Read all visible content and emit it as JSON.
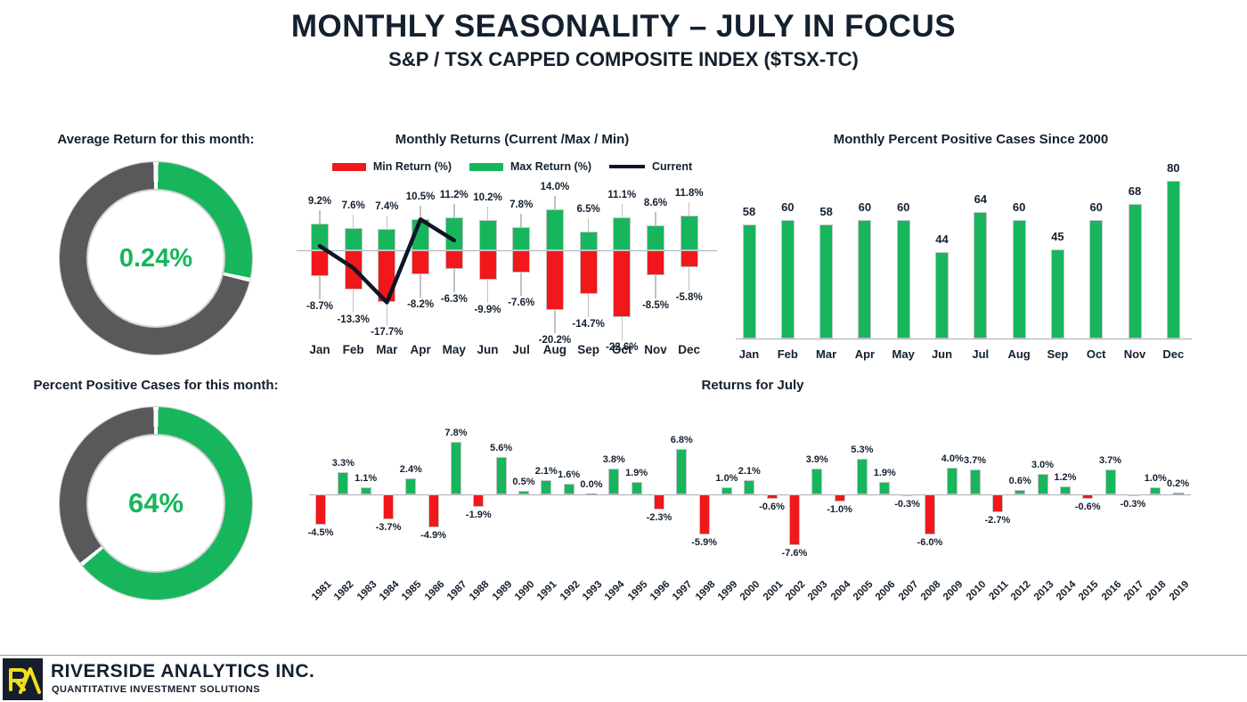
{
  "header": {
    "title": "MONTHLY SEASONALITY – JULY IN FOCUS",
    "subtitle": "S&P / TSX CAPPED COMPOSITE INDEX ($TSX-TC)"
  },
  "colors": {
    "green": "#17B65C",
    "red": "#F2171B",
    "donut_gray": "#58595B",
    "navy": "#14202E",
    "line": "#0D1726",
    "axis": "#AAADB2"
  },
  "chart_data": [
    {
      "id": "avg-return-donut",
      "type": "pie",
      "title": "Average Return for this month:",
      "value_label": "0.24%",
      "slices": [
        {
          "name": "highlight",
          "fraction": 0.285,
          "color": "#17B65C"
        },
        {
          "name": "remainder",
          "fraction": 0.715,
          "color": "#58595B"
        }
      ]
    },
    {
      "id": "monthly-returns",
      "type": "bar",
      "title": "Monthly Returns (Current /Max / Min)",
      "categories": [
        "Jan",
        "Feb",
        "Mar",
        "Apr",
        "May",
        "Jun",
        "Jul",
        "Aug",
        "Sep",
        "Oct",
        "Nov",
        "Dec"
      ],
      "series": [
        {
          "name": "Min Return (%)",
          "color": "#F2171B",
          "values": [
            -8.7,
            -13.3,
            -17.7,
            -8.2,
            -6.3,
            -9.9,
            -7.6,
            -20.2,
            -14.7,
            -22.6,
            -8.5,
            -5.8
          ]
        },
        {
          "name": "Max Return (%)",
          "color": "#17B65C",
          "values": [
            9.2,
            7.6,
            7.4,
            10.5,
            11.2,
            10.2,
            7.8,
            14.0,
            6.5,
            11.1,
            8.6,
            11.8
          ]
        },
        {
          "name": "Current",
          "color": "#0D1726",
          "render": "line",
          "months_covered": [
            "Jan",
            "Feb",
            "Mar",
            "Apr",
            "May"
          ],
          "values_estimated": [
            1.5,
            -6.0,
            -17.7,
            10.5,
            3.4
          ]
        }
      ]
    },
    {
      "id": "percent-positive-monthly",
      "type": "bar",
      "title": "Monthly Percent Positive Cases Since 2000",
      "categories": [
        "Jan",
        "Feb",
        "Mar",
        "Apr",
        "May",
        "Jun",
        "Jul",
        "Aug",
        "Sep",
        "Oct",
        "Nov",
        "Dec"
      ],
      "values": [
        58,
        60,
        58,
        60,
        60,
        44,
        64,
        60,
        45,
        60,
        68,
        80
      ]
    },
    {
      "id": "positive-cases-donut",
      "type": "pie",
      "title": "Percent Positive Cases for this month:",
      "value_label": "64%",
      "slices": [
        {
          "name": "positive",
          "fraction": 0.64,
          "color": "#17B65C"
        },
        {
          "name": "remainder",
          "fraction": 0.36,
          "color": "#58595B"
        }
      ]
    },
    {
      "id": "returns-for-july",
      "type": "bar",
      "title": "Returns for July",
      "categories": [
        "1981",
        "1982",
        "1983",
        "1984",
        "1985",
        "1986",
        "1987",
        "1988",
        "1989",
        "1990",
        "1991",
        "1992",
        "1993",
        "1994",
        "1995",
        "1996",
        "1997",
        "1998",
        "1999",
        "2000",
        "2001",
        "2002",
        "2003",
        "2004",
        "2005",
        "2006",
        "2007",
        "2008",
        "2009",
        "2010",
        "2011",
        "2012",
        "2013",
        "2014",
        "2015",
        "2016",
        "2017",
        "2018",
        "2019"
      ],
      "values": [
        -4.5,
        3.3,
        1.1,
        -3.7,
        2.4,
        -4.9,
        7.8,
        -1.9,
        5.6,
        0.5,
        2.1,
        1.6,
        0.0,
        3.8,
        1.9,
        -2.3,
        6.8,
        -5.9,
        1.0,
        2.1,
        -0.6,
        -7.6,
        3.9,
        -1.0,
        5.3,
        1.9,
        -0.3,
        -6.0,
        4.0,
        3.7,
        -2.7,
        0.6,
        3.0,
        1.2,
        -0.6,
        3.7,
        -0.3,
        1.0,
        0.2
      ]
    }
  ],
  "footer": {
    "company": "RIVERSIDE ANALYTICS INC.",
    "tagline": "QUANTITATIVE INVESTMENT SOLUTIONS",
    "logo_monogram": "RA",
    "logo_colors": {
      "background": "#141E2C",
      "glyph": "#F2DE1C"
    }
  }
}
